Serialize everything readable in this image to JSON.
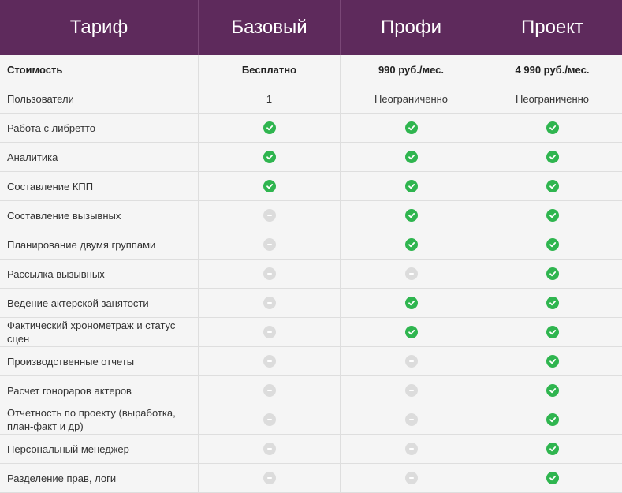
{
  "colors": {
    "header_bg": "#5e2a5c",
    "check": "#2fb54f",
    "unavailable": "#dcdcdc"
  },
  "header": {
    "label": "Тариф",
    "plans": [
      "Базовый",
      "Профи",
      "Проект"
    ]
  },
  "price_row": {
    "label": "Стоимость",
    "values": [
      "Бесплатно",
      "990 руб./мес.",
      "4 990 руб./мес."
    ]
  },
  "users_row": {
    "label": "Пользователи",
    "values": [
      "1",
      "Неограниченно",
      "Неограниченно"
    ]
  },
  "features": [
    {
      "label": "Работа с либретто",
      "availability": [
        true,
        true,
        true
      ]
    },
    {
      "label": "Аналитика",
      "availability": [
        true,
        true,
        true
      ]
    },
    {
      "label": "Составление КПП",
      "availability": [
        true,
        true,
        true
      ]
    },
    {
      "label": "Составление вызывных",
      "availability": [
        false,
        true,
        true
      ]
    },
    {
      "label": "Планирование двумя группами",
      "availability": [
        false,
        true,
        true
      ]
    },
    {
      "label": "Рассылка вызывных",
      "availability": [
        false,
        false,
        true
      ]
    },
    {
      "label": "Ведение актерской занятости",
      "availability": [
        false,
        true,
        true
      ]
    },
    {
      "label": "Фактический хронометраж и статус сцен",
      "availability": [
        false,
        true,
        true
      ]
    },
    {
      "label": "Производственные отчеты",
      "availability": [
        false,
        false,
        true
      ]
    },
    {
      "label": "Расчет гонораров актеров",
      "availability": [
        false,
        false,
        true
      ]
    },
    {
      "label": "Отчетность по проекту (выработка, план-факт и др)",
      "availability": [
        false,
        false,
        true
      ]
    },
    {
      "label": "Персональный менеджер",
      "availability": [
        false,
        false,
        true
      ]
    },
    {
      "label": "Разделение прав, логи",
      "availability": [
        false,
        false,
        true
      ]
    }
  ]
}
